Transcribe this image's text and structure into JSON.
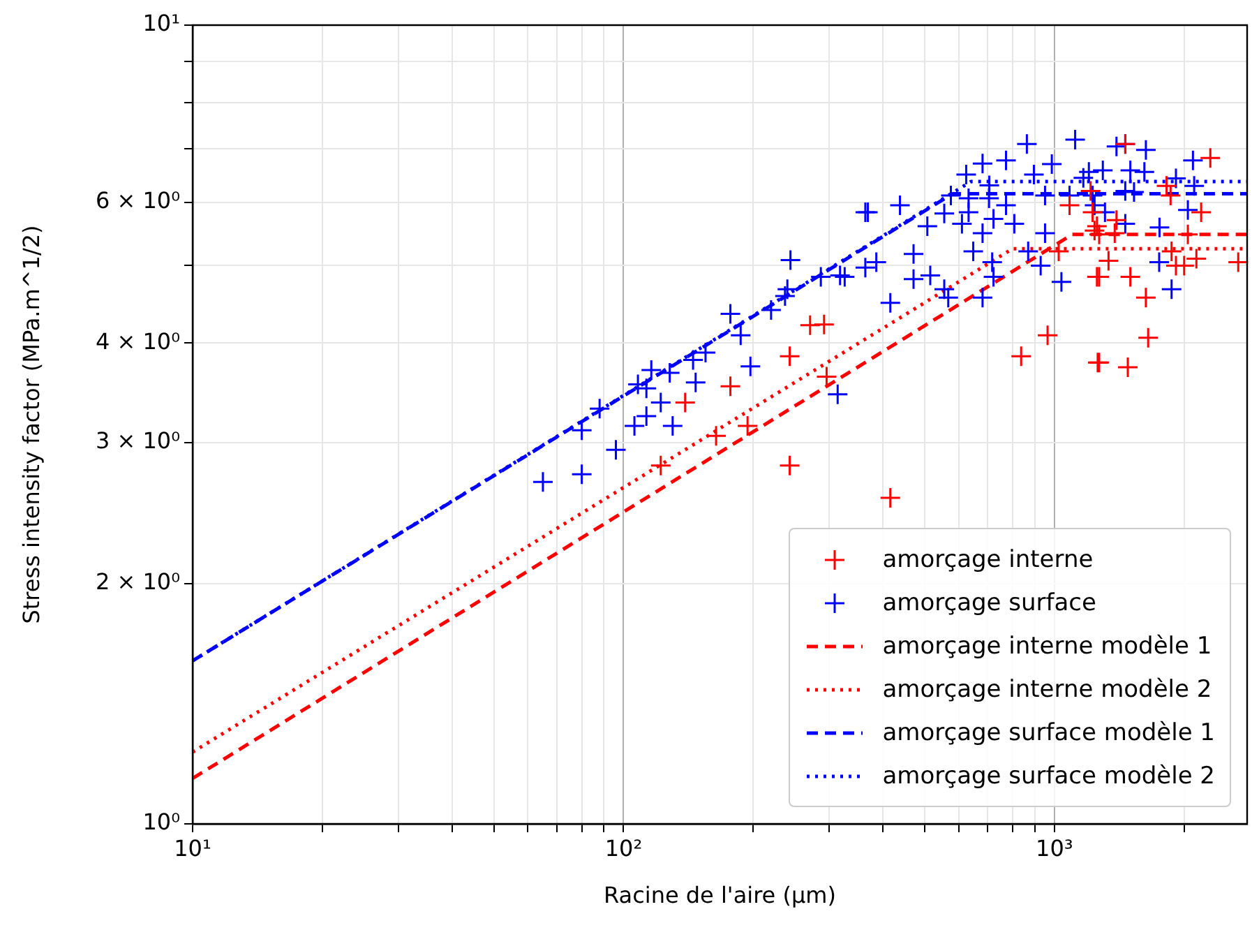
{
  "chart_data": {
    "type": "scatter",
    "xlabel": "Racine de l'aire (µm)",
    "ylabel": "Stress intensity factor (MPa.m^1/2)",
    "log": "xy",
    "grid": true,
    "legend": "bottom right",
    "xlim": [
      10,
      2800
    ],
    "ylim": [
      1,
      10
    ],
    "xticks": [
      {
        "value": 10,
        "label": "10¹"
      },
      {
        "value": 20,
        "label": null
      },
      {
        "value": 30,
        "label": null
      },
      {
        "value": 40,
        "label": null
      },
      {
        "value": 50,
        "label": null
      },
      {
        "value": 60,
        "label": null
      },
      {
        "value": 70,
        "label": null
      },
      {
        "value": 80,
        "label": null
      },
      {
        "value": 90,
        "label": null
      },
      {
        "value": 100,
        "label": "10²"
      },
      {
        "value": 200,
        "label": null
      },
      {
        "value": 300,
        "label": null
      },
      {
        "value": 400,
        "label": null
      },
      {
        "value": 500,
        "label": null
      },
      {
        "value": 600,
        "label": null
      },
      {
        "value": 700,
        "label": null
      },
      {
        "value": 800,
        "label": null
      },
      {
        "value": 900,
        "label": null
      },
      {
        "value": 1000,
        "label": "10³"
      },
      {
        "value": 2000,
        "label": null
      }
    ],
    "yticks": [
      {
        "value": 1,
        "label": "10⁰"
      },
      {
        "value": 2,
        "label": "2 × 10⁰"
      },
      {
        "value": 3,
        "label": "3 × 10⁰"
      },
      {
        "value": 4,
        "label": "4 × 10⁰"
      },
      {
        "value": 5,
        "label": null
      },
      {
        "value": 6,
        "label": "6 × 10⁰"
      },
      {
        "value": 7,
        "label": null
      },
      {
        "value": 8,
        "label": null
      },
      {
        "value": 9,
        "label": null
      },
      {
        "value": 10,
        "label": "10¹"
      }
    ],
    "series": [
      {
        "name": "amorçage interne",
        "marker": "cross",
        "color": "#ff0000",
        "x": [
          243,
          271,
          292,
          177,
          139,
          194,
          164,
          296,
          122,
          243,
          416,
          964,
          837,
          1023,
          1084,
          1213,
          1226,
          1239,
          1255,
          1260,
          1460,
          2300,
          1820,
          1860,
          2190,
          1255,
          1393,
          1380,
          1270,
          2040,
          1870,
          1914,
          2000,
          2135,
          2670,
          1335,
          1270,
          1500,
          1630,
          1650,
          1270,
          1480
        ],
        "values": [
          3.85,
          4.21,
          4.22,
          3.53,
          3.37,
          3.15,
          3.06,
          3.63,
          2.81,
          2.81,
          2.56,
          4.09,
          3.85,
          5.21,
          5.95,
          6.2,
          5.83,
          5.53,
          4.84,
          3.78,
          7.1,
          6.82,
          6.29,
          6.12,
          5.83,
          5.6,
          5.7,
          5.49,
          5.47,
          5.47,
          5.21,
          5.0,
          5.0,
          5.1,
          5.05,
          5.07,
          4.84,
          4.84,
          4.56,
          4.06,
          3.78,
          3.73
        ]
      },
      {
        "name": "amorçage surface",
        "marker": "cross",
        "color": "#0000ff",
        "x": [
          65,
          80,
          80,
          88,
          96,
          106,
          108,
          113,
          113,
          116,
          122,
          128,
          130,
          145,
          147,
          155,
          177,
          187,
          197,
          220,
          237,
          240,
          244,
          287,
          314,
          326,
          364,
          364,
          369,
          438,
          318,
          386,
          471,
          471,
          515,
          416,
          555,
          567,
          507,
          555,
          575,
          624,
          681,
          772,
          863,
          1117,
          986,
          896,
          632,
          706,
          705,
          632,
          610,
          722,
          772,
          807,
          681,
          951,
          951,
          869,
          929,
          1038,
          648,
          717,
          722,
          681,
          1084,
          1167,
          1393,
          1460,
          1630,
          2096,
          1202,
          1295,
          1500,
          1617,
          1914,
          1460,
          1530,
          1226,
          1239,
          1310,
          1460,
          1753,
          2040,
          1750,
          1870,
          2110
        ],
        "values": [
          2.68,
          2.74,
          3.11,
          3.31,
          2.94,
          3.15,
          3.55,
          3.51,
          3.24,
          3.7,
          3.37,
          3.67,
          3.15,
          3.81,
          3.57,
          3.89,
          4.35,
          4.09,
          3.74,
          4.4,
          4.58,
          4.67,
          5.08,
          4.84,
          3.45,
          4.84,
          5.83,
          4.97,
          5.83,
          5.95,
          4.86,
          5.05,
          5.17,
          4.81,
          4.86,
          4.49,
          4.67,
          4.56,
          5.6,
          5.81,
          6.12,
          6.5,
          6.71,
          6.77,
          7.1,
          7.19,
          6.7,
          6.5,
          6.07,
          6.3,
          6.07,
          5.83,
          5.64,
          5.72,
          5.95,
          5.64,
          5.49,
          6.12,
          5.49,
          5.21,
          5.0,
          4.77,
          5.21,
          5.05,
          4.84,
          4.56,
          6.12,
          6.44,
          7.05,
          7.1,
          6.98,
          6.77,
          6.55,
          6.58,
          6.58,
          6.55,
          6.43,
          6.2,
          6.18,
          6.12,
          5.95,
          5.83,
          5.64,
          5.58,
          5.87,
          5.05,
          4.67,
          6.29
        ]
      },
      {
        "name": "amorçage interne modèle 1",
        "type": "line",
        "marker": "none",
        "line_style": "dashed",
        "color": "#ff0000",
        "x": [
          10,
          1100,
          2800
        ],
        "values": [
          1.14,
          5.47,
          5.47
        ]
      },
      {
        "name": "amorçage interne modèle 2",
        "type": "line",
        "marker": "none",
        "line_style": "dotted",
        "color": "#ff0000",
        "x": [
          10,
          800,
          2800
        ],
        "values": [
          1.23,
          5.25,
          5.25
        ]
      },
      {
        "name": "amorçage surface modèle 1",
        "type": "line",
        "marker": "none",
        "line_style": "dashed",
        "color": "#0000ff",
        "x": [
          10,
          580,
          2800
        ],
        "values": [
          1.6,
          6.15,
          6.15
        ]
      },
      {
        "name": "amorçage surface modèle 2",
        "type": "line",
        "marker": "none",
        "line_style": "dotted",
        "color": "#0000ff",
        "x": [
          10,
          640,
          2800
        ],
        "values": [
          1.6,
          6.37,
          6.37
        ]
      }
    ]
  }
}
